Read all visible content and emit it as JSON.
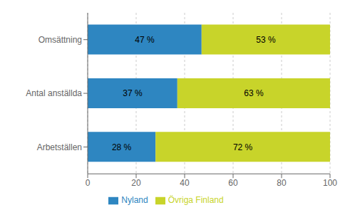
{
  "chart_data": {
    "type": "bar",
    "orientation": "horizontal",
    "stacked": true,
    "categories": [
      "Arbetställen",
      "Antal anställda",
      "Omsättning"
    ],
    "series": [
      {
        "name": "Nyland",
        "color": "#2E86C1",
        "values": [
          28,
          37,
          47
        ],
        "value_labels": [
          "28 %",
          "37 %",
          "47 %"
        ]
      },
      {
        "name": "Övriga Finland",
        "color": "#C8D42A",
        "values": [
          72,
          63,
          53
        ],
        "value_labels": [
          "72 %",
          "63 %",
          "53 %"
        ]
      }
    ],
    "xlim": [
      0,
      100
    ],
    "xticks": [
      0,
      20,
      40,
      60,
      80,
      100
    ],
    "grid": true,
    "legend": "bottom",
    "data_labels": true
  }
}
